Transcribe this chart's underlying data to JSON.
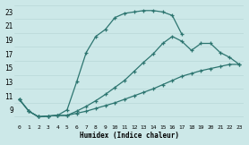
{
  "xlabel": "Humidex (Indice chaleur)",
  "background_color": "#cce8e8",
  "grid_color": "#c0d8d8",
  "line_color": "#2d7570",
  "xlim": [
    -0.5,
    23.5
  ],
  "ylim": [
    7,
    24
  ],
  "yticks": [
    9,
    11,
    13,
    15,
    17,
    19,
    21,
    23
  ],
  "xticks": [
    0,
    1,
    2,
    3,
    4,
    5,
    6,
    7,
    8,
    9,
    10,
    11,
    12,
    13,
    14,
    15,
    16,
    17,
    18,
    19,
    20,
    21,
    22,
    23
  ],
  "c1x": [
    0,
    1,
    2,
    3,
    4,
    5,
    6,
    7,
    8,
    9,
    10,
    11,
    12,
    13,
    14,
    15,
    16,
    17
  ],
  "c1y": [
    10.5,
    8.8,
    8.0,
    8.1,
    8.2,
    9.0,
    13.0,
    17.2,
    19.5,
    20.5,
    22.2,
    22.8,
    23.0,
    23.2,
    23.2,
    23.0,
    22.5,
    19.8
  ],
  "c2x": [
    0,
    1,
    2,
    3,
    4,
    5,
    6,
    7,
    8,
    9,
    10,
    11,
    12,
    13,
    14,
    15,
    16,
    17,
    18,
    19,
    20,
    21,
    22,
    23
  ],
  "c2y": [
    10.5,
    8.8,
    8.0,
    8.1,
    8.2,
    8.2,
    8.5,
    8.8,
    9.2,
    9.6,
    10.0,
    10.5,
    11.0,
    11.5,
    12.0,
    12.6,
    13.2,
    13.8,
    14.2,
    14.6,
    14.9,
    15.2,
    15.5,
    15.5
  ],
  "c3x": [
    0,
    1,
    2,
    3,
    4,
    5,
    6,
    7,
    8,
    9,
    10,
    11,
    12,
    13,
    14,
    15,
    16,
    17,
    18,
    19,
    20,
    21,
    22,
    23
  ],
  "c3y": [
    10.5,
    8.8,
    8.0,
    8.1,
    8.2,
    8.2,
    8.8,
    9.5,
    10.3,
    11.2,
    12.2,
    13.2,
    14.5,
    15.8,
    17.0,
    18.5,
    19.5,
    18.8,
    17.5,
    18.5,
    18.5,
    17.2,
    16.5,
    15.5
  ]
}
